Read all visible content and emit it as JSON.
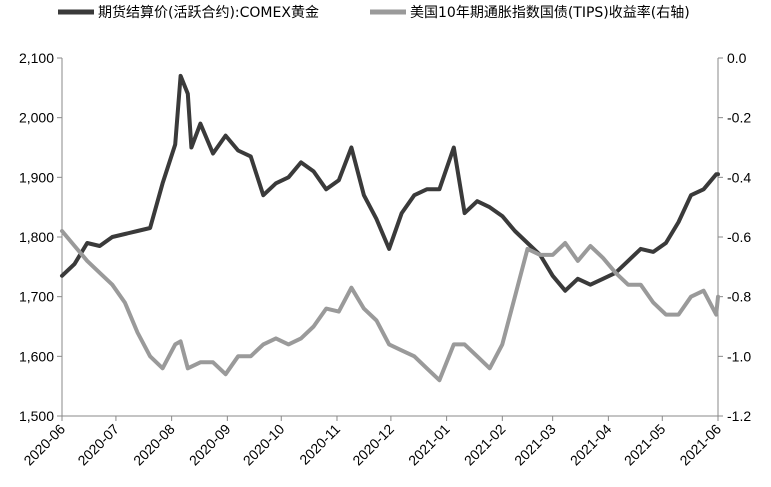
{
  "colors": {
    "gold": "#3a3a3a",
    "tips": "#9a9a9a",
    "axis": "#888888",
    "text": "#000000"
  },
  "chart_data": {
    "type": "line",
    "legend_placement": "top",
    "grid": false,
    "x_tick_labels": [
      "2020-06",
      "2020-07",
      "2020-08",
      "2020-09",
      "2020-10",
      "2020-11",
      "2020-12",
      "2021-01",
      "2021-02",
      "2021-03",
      "2021-04",
      "2021-05",
      "2021-06"
    ],
    "y_left": {
      "ylim": [
        1500,
        2100
      ],
      "ticks": [
        1500,
        1600,
        1700,
        1800,
        1900,
        2000,
        2100
      ],
      "tick_labels": [
        "1,500",
        "1,600",
        "1,700",
        "1,800",
        "1,900",
        "2,000",
        "2,100"
      ]
    },
    "y_right": {
      "ylim": [
        -1.2,
        0.0
      ],
      "ticks": [
        -1.2,
        -1.0,
        -0.8,
        -0.6,
        -0.4,
        -0.2,
        0.0
      ],
      "tick_labels": [
        "-1.2",
        "-1.0",
        "-0.8",
        "-0.6",
        "-0.4",
        "-0.2",
        "0.0"
      ]
    },
    "series": [
      {
        "name": "期货结算价(活跃合约):COMEX黄金",
        "axis": "left",
        "x": [
          "2020-06-01",
          "2020-06-08",
          "2020-06-15",
          "2020-06-22",
          "2020-06-29",
          "2020-07-06",
          "2020-07-13",
          "2020-07-20",
          "2020-07-27",
          "2020-08-03",
          "2020-08-06",
          "2020-08-10",
          "2020-08-12",
          "2020-08-17",
          "2020-08-24",
          "2020-08-31",
          "2020-09-07",
          "2020-09-14",
          "2020-09-21",
          "2020-09-28",
          "2020-10-05",
          "2020-10-12",
          "2020-10-19",
          "2020-10-26",
          "2020-11-02",
          "2020-11-09",
          "2020-11-16",
          "2020-11-23",
          "2020-11-30",
          "2020-12-07",
          "2020-12-14",
          "2020-12-21",
          "2020-12-28",
          "2021-01-05",
          "2021-01-11",
          "2021-01-18",
          "2021-01-25",
          "2021-02-01",
          "2021-02-08",
          "2021-02-15",
          "2021-02-22",
          "2021-03-01",
          "2021-03-08",
          "2021-03-15",
          "2021-03-22",
          "2021-03-29",
          "2021-04-05",
          "2021-04-12",
          "2021-04-19",
          "2021-04-26",
          "2021-05-03",
          "2021-05-10",
          "2021-05-17",
          "2021-05-24",
          "2021-05-31",
          "2021-06-01"
        ],
        "values": [
          1735,
          1755,
          1790,
          1785,
          1800,
          1805,
          1810,
          1815,
          1890,
          1955,
          2070,
          2040,
          1950,
          1990,
          1940,
          1970,
          1945,
          1935,
          1870,
          1890,
          1900,
          1925,
          1910,
          1880,
          1895,
          1950,
          1870,
          1830,
          1780,
          1840,
          1870,
          1880,
          1880,
          1950,
          1840,
          1860,
          1850,
          1835,
          1810,
          1790,
          1770,
          1735,
          1710,
          1730,
          1720,
          1730,
          1740,
          1760,
          1780,
          1775,
          1790,
          1825,
          1870,
          1880,
          1905,
          1905
        ]
      },
      {
        "name": "美国10年期通胀指数国债(TIPS)收益率(右轴)",
        "axis": "right",
        "x": [
          "2020-06-01",
          "2020-06-08",
          "2020-06-15",
          "2020-06-22",
          "2020-06-29",
          "2020-07-06",
          "2020-07-13",
          "2020-07-20",
          "2020-07-27",
          "2020-08-03",
          "2020-08-06",
          "2020-08-10",
          "2020-08-17",
          "2020-08-24",
          "2020-08-31",
          "2020-09-07",
          "2020-09-14",
          "2020-09-21",
          "2020-09-28",
          "2020-10-05",
          "2020-10-12",
          "2020-10-19",
          "2020-10-26",
          "2020-11-02",
          "2020-11-09",
          "2020-11-16",
          "2020-11-23",
          "2020-11-30",
          "2020-12-07",
          "2020-12-14",
          "2020-12-21",
          "2020-12-28",
          "2021-01-05",
          "2021-01-11",
          "2021-01-18",
          "2021-01-25",
          "2021-02-01",
          "2021-02-08",
          "2021-02-15",
          "2021-02-22",
          "2021-03-01",
          "2021-03-08",
          "2021-03-15",
          "2021-03-22",
          "2021-03-29",
          "2021-04-05",
          "2021-04-12",
          "2021-04-19",
          "2021-04-26",
          "2021-05-03",
          "2021-05-10",
          "2021-05-17",
          "2021-05-24",
          "2021-05-31",
          "2021-06-01"
        ],
        "values": [
          -0.58,
          -0.63,
          -0.68,
          -0.72,
          -0.76,
          -0.82,
          -0.92,
          -1.0,
          -1.04,
          -0.96,
          -0.95,
          -1.04,
          -1.02,
          -1.02,
          -1.06,
          -1.0,
          -1.0,
          -0.96,
          -0.94,
          -0.96,
          -0.94,
          -0.9,
          -0.84,
          -0.85,
          -0.77,
          -0.84,
          -0.88,
          -0.96,
          -0.98,
          -1.0,
          -1.04,
          -1.08,
          -0.96,
          -0.96,
          -1.0,
          -1.04,
          -0.96,
          -0.8,
          -0.64,
          -0.66,
          -0.66,
          -0.62,
          -0.68,
          -0.63,
          -0.67,
          -0.72,
          -0.76,
          -0.76,
          -0.82,
          -0.86,
          -0.86,
          -0.8,
          -0.78,
          -0.86,
          -0.8
        ]
      }
    ]
  }
}
